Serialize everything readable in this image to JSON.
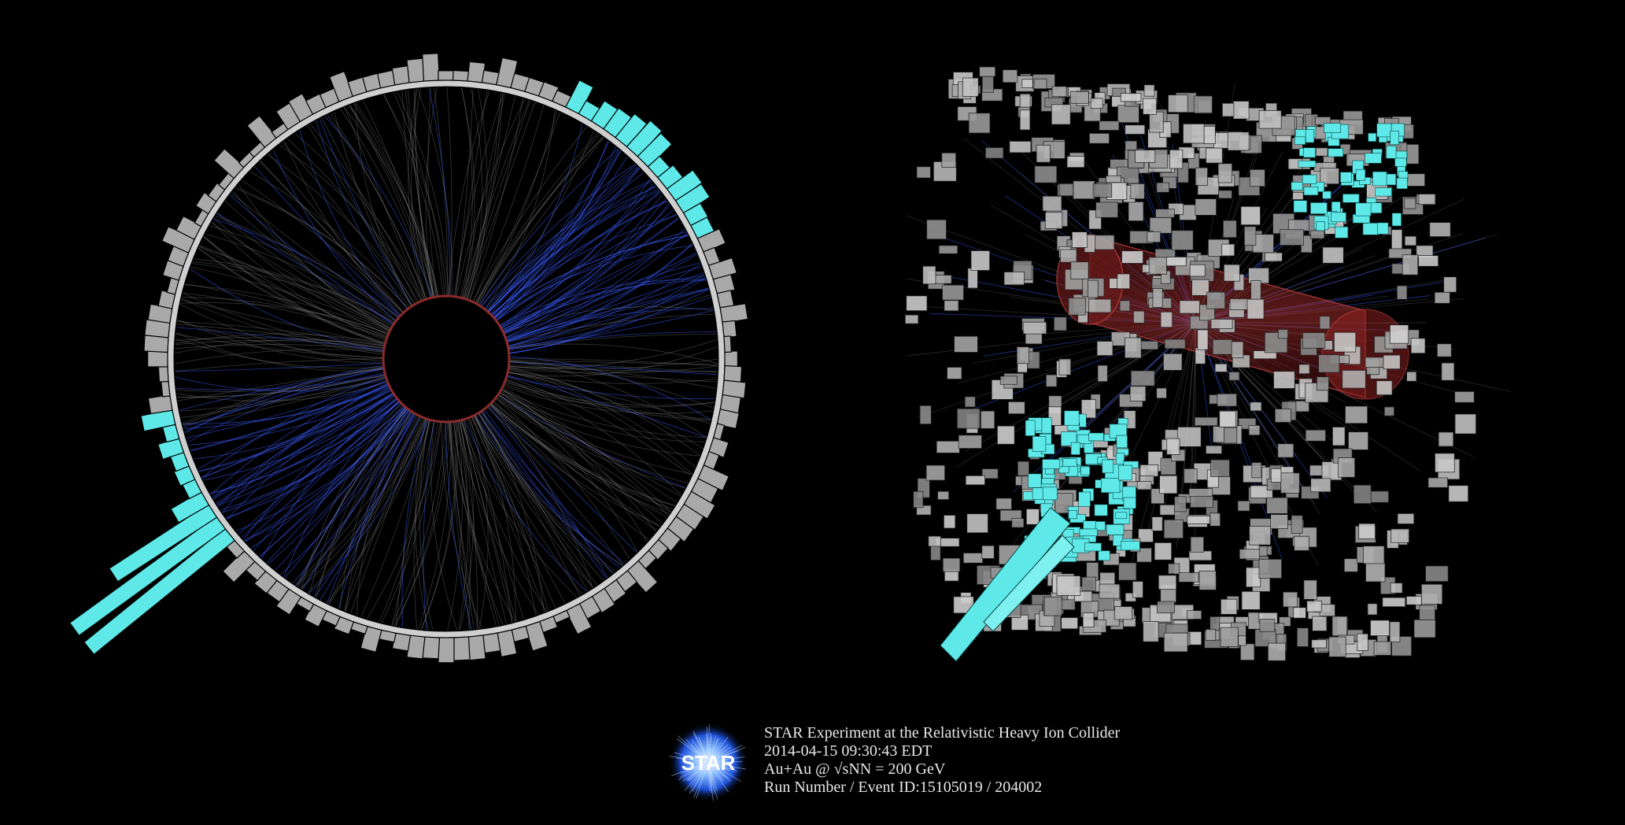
{
  "caption": {
    "title": "STAR Experiment at the Relativistic Heavy Ion Collider",
    "datetime": "2014-04-15 09:30:43 EDT",
    "collision": "Au+Au @ √sNN = 200 GeV",
    "run_event": "Run Number / Event ID:15105019 / 204002"
  },
  "logo": {
    "text": "STAR"
  },
  "colors": {
    "background": "#000000",
    "tower_gray": "#a9a9a9",
    "tower_cyan": "#5ee8e8",
    "track_gray": "#9a9a9a",
    "track_blue": "#3a5cff",
    "tpc_red": "#b03030"
  }
}
